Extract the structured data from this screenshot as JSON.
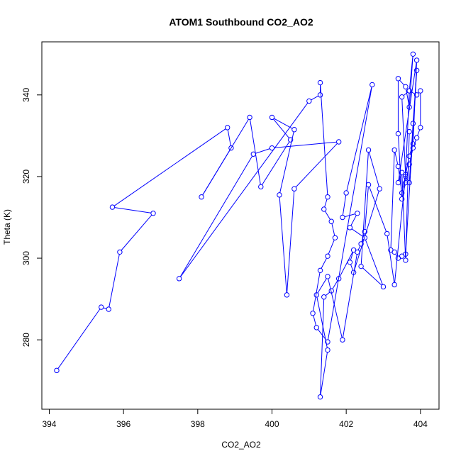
{
  "chart_data": {
    "type": "scatter",
    "title": "ATOM1 Southbound CO2_AO2",
    "xlabel": "CO2_AO2",
    "ylabel": "Theta (K)",
    "xlim": [
      393.8,
      404.5
    ],
    "ylim": [
      263,
      353
    ],
    "xticks": [
      394,
      396,
      398,
      400,
      402,
      404
    ],
    "yticks": [
      280,
      300,
      320,
      340
    ],
    "grid": false,
    "legend": "none",
    "color": "#0000ff",
    "x": [
      394.2,
      395.4,
      395.6,
      395.9,
      396.8,
      395.7,
      398.8,
      398.9,
      398.1,
      399.4,
      399.7,
      400.5,
      400.0,
      400.6,
      400.2,
      400.4,
      400.6,
      401.8,
      400.0,
      399.5,
      397.5,
      401.0,
      401.3,
      401.3,
      401.5,
      401.4,
      401.6,
      401.7,
      401.5,
      401.3,
      401.1,
      401.2,
      401.5,
      402.7,
      402.0,
      401.9,
      402.3,
      402.1,
      402.5,
      403.0,
      402.4,
      402.6,
      402.9,
      402.2,
      402.1,
      402.2,
      401.8,
      401.6,
      401.4,
      401.3,
      401.5,
      401.2,
      401.5,
      401.9,
      402.3,
      402.4,
      402.5,
      402.6,
      403.1,
      403.3,
      403.6,
      403.7,
      403.9,
      404.0,
      404.0,
      403.9,
      403.8,
      403.7,
      403.6,
      403.5,
      403.4,
      403.4,
      403.6,
      403.7,
      403.8,
      403.7,
      403.5,
      403.6,
      403.7,
      403.8,
      403.9,
      403.6,
      403.5,
      403.4,
      403.3,
      403.2,
      403.3,
      403.4,
      403.5,
      403.7,
      403.8,
      403.9,
      403.4,
      403.5,
      403.6,
      403.7
    ],
    "y": [
      272.5,
      288.0,
      287.5,
      301.5,
      311.0,
      312.5,
      332.0,
      327.0,
      315.0,
      334.5,
      317.5,
      329.0,
      334.5,
      331.5,
      315.5,
      291.0,
      317.0,
      328.5,
      327.0,
      325.5,
      295.0,
      338.5,
      340.0,
      343.0,
      315.0,
      312.0,
      309.0,
      305.0,
      300.5,
      297.0,
      286.5,
      283.0,
      279.5,
      342.5,
      316.0,
      310.0,
      311.0,
      307.5,
      305.0,
      293.0,
      298.0,
      326.5,
      317.0,
      296.5,
      299.0,
      302.0,
      295.0,
      292.0,
      290.5,
      266.0,
      277.5,
      291.0,
      295.5,
      280.0,
      301.5,
      303.5,
      306.5,
      318.0,
      306.0,
      293.5,
      320.5,
      341.0,
      340.0,
      341.0,
      332.0,
      329.5,
      327.0,
      323.0,
      318.5,
      314.5,
      330.5,
      344.0,
      342.0,
      337.0,
      350.0,
      341.0,
      339.5,
      320.0,
      318.5,
      333.0,
      346.0,
      301.0,
      300.5,
      300.0,
      301.5,
      302.0,
      326.5,
      322.5,
      316.0,
      325.0,
      328.0,
      348.5,
      318.5,
      321.0,
      299.5,
      331.0
    ]
  }
}
